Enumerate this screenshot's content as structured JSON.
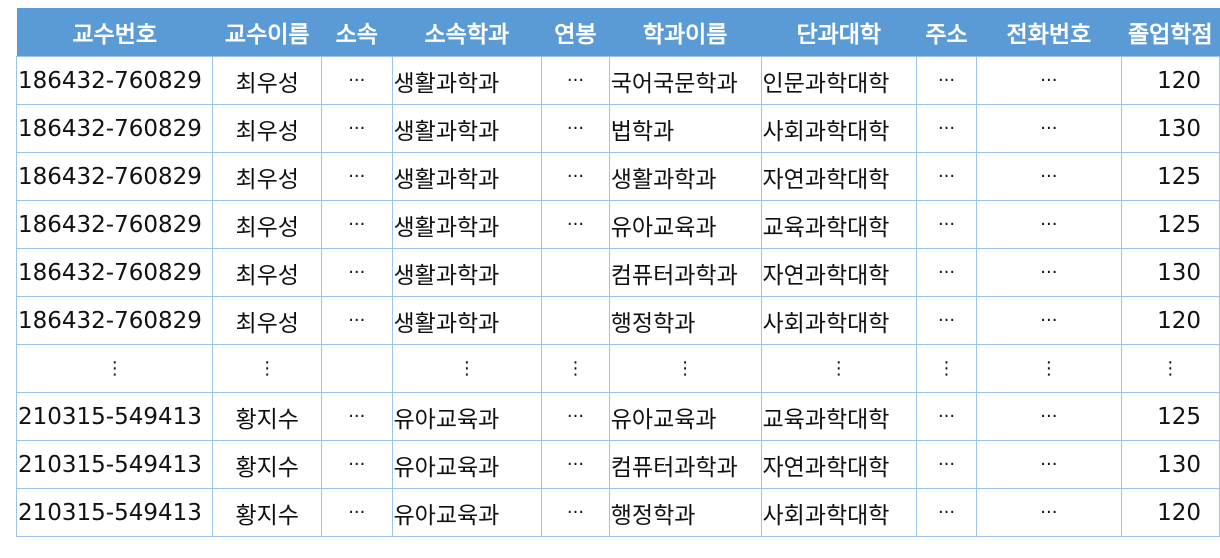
{
  "table": {
    "headers": [
      "교수번호",
      "교수이름",
      "소속",
      "소속학과",
      "연봉",
      "학과이름",
      "단과대학",
      "주소",
      "전화번호",
      "졸업학점"
    ],
    "rows": [
      [
        "186432-760829",
        "최우성",
        "···",
        "생활과학과",
        "···",
        "국어국문학과",
        "인문과학대학",
        "···",
        "···",
        "120"
      ],
      [
        "186432-760829",
        "최우성",
        "···",
        "생활과학과",
        "···",
        "법학과",
        "사회과학대학",
        "···",
        "···",
        "130"
      ],
      [
        "186432-760829",
        "최우성",
        "···",
        "생활과학과",
        "···",
        "생활과학과",
        "자연과학대학",
        "···",
        "···",
        "125"
      ],
      [
        "186432-760829",
        "최우성",
        "···",
        "생활과학과",
        "···",
        "유아교육과",
        "교육과학대학",
        "···",
        "···",
        "125"
      ],
      [
        "186432-760829",
        "최우성",
        "···",
        "생활과학과",
        "",
        "컴퓨터과학과",
        "자연과학대학",
        "···",
        "···",
        "130"
      ],
      [
        "186432-760829",
        "최우성",
        "···",
        "생활과학과",
        "",
        "행정학과",
        "사회과학대학",
        "···",
        "···",
        "120"
      ],
      [
        "⋮",
        "⋮",
        "",
        "⋮",
        "⋮",
        "⋮",
        "⋮",
        "⋮",
        "⋮",
        "⋮"
      ],
      [
        "210315-549413",
        "황지수",
        "···",
        "유아교육과",
        "···",
        "유아교육과",
        "교육과학대학",
        "···",
        "···",
        "125"
      ],
      [
        "210315-549413",
        "황지수",
        "···",
        "유아교육과",
        "···",
        "컴퓨터과학과",
        "자연과학대학",
        "···",
        "···",
        "130"
      ],
      [
        "210315-549413",
        "황지수",
        "···",
        "유아교육과",
        "···",
        "행정학과",
        "사회과학대학",
        "···",
        "···",
        "120"
      ]
    ]
  },
  "colors": {
    "header_background": "#5b9bd5",
    "header_text": "#ffffff",
    "grid_line": "#9dc3e6"
  }
}
